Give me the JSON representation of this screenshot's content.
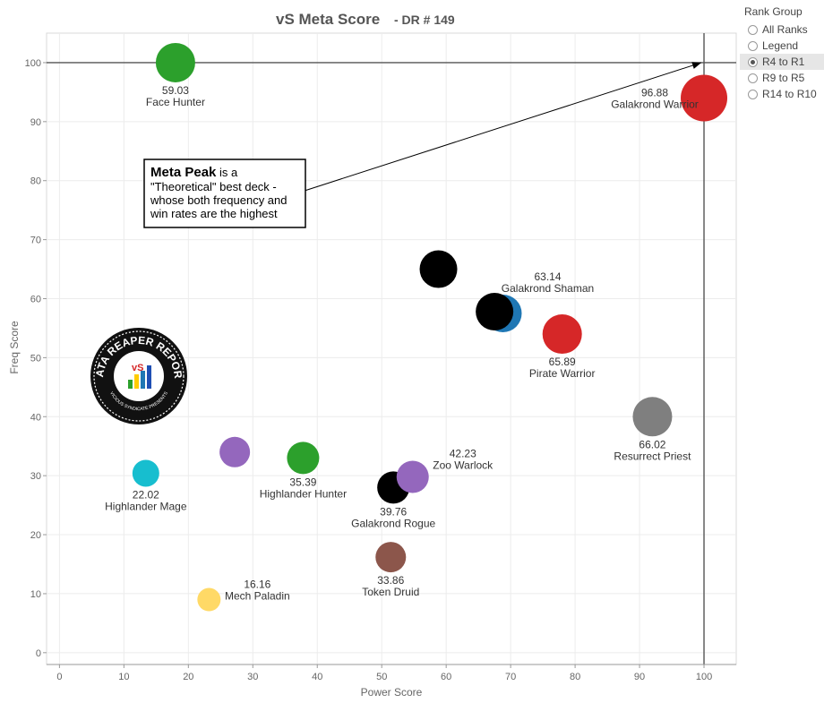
{
  "chart_data": {
    "type": "scatter",
    "title": "vS Meta Score",
    "subtitle": "- DR # 149",
    "xlabel": "Power Score",
    "ylabel": "Freq Score",
    "xlim": [
      -2,
      105
    ],
    "ylim": [
      -2,
      105
    ],
    "xticks": [
      0,
      10,
      20,
      30,
      40,
      50,
      60,
      70,
      80,
      90,
      100
    ],
    "yticks": [
      0,
      10,
      20,
      30,
      40,
      50,
      60,
      70,
      80,
      90,
      100
    ],
    "grid": true,
    "points": [
      {
        "name": "Face Hunter",
        "score": "59.03",
        "x": 18,
        "y": 100,
        "color": "#2ca02c",
        "size": 22
      },
      {
        "name": "Galakrond Warrior",
        "score": "96.88",
        "x": 100,
        "y": 94,
        "color": "#d62728",
        "size": 26
      },
      {
        "name": "",
        "score": "",
        "x": 58.8,
        "y": 65,
        "color": "#000000",
        "size": 21
      },
      {
        "name": "Galakrond Shaman",
        "score": "63.14",
        "x": 68.8,
        "y": 57.5,
        "color": "#1f77b4",
        "size": 21
      },
      {
        "name": "",
        "score": "",
        "x": 67.5,
        "y": 57.8,
        "color": "#000000",
        "size": 21
      },
      {
        "name": "Pirate Warrior",
        "score": "65.89",
        "x": 78,
        "y": 54,
        "color": "#d62728",
        "size": 22
      },
      {
        "name": "Resurrect Priest",
        "score": "66.02",
        "x": 92,
        "y": 40,
        "color": "#7f7f7f",
        "size": 22
      },
      {
        "name": "",
        "score": "",
        "x": 27.2,
        "y": 34,
        "color": "#9467bd",
        "size": 17
      },
      {
        "name": "Highlander Hunter",
        "score": "35.39",
        "x": 37.8,
        "y": 33,
        "color": "#2ca02c",
        "size": 18
      },
      {
        "name": "Highlander Mage",
        "score": "22.02",
        "x": 13.4,
        "y": 30.4,
        "color": "#17becf",
        "size": 15
      },
      {
        "name": "Galakrond Rogue",
        "score": "39.76",
        "x": 51.8,
        "y": 28,
        "color": "#000000",
        "size": 18
      },
      {
        "name": "Zoo Warlock",
        "score": "42.23",
        "x": 54.8,
        "y": 29.8,
        "color": "#9467bd",
        "size": 18
      },
      {
        "name": "Token Druid",
        "score": "33.86",
        "x": 51.4,
        "y": 16.2,
        "color": "#8c564b",
        "size": 17
      },
      {
        "name": "Mech Paladin",
        "score": "16.16",
        "x": 23.2,
        "y": 9,
        "color": "#ffd966",
        "size": 13
      }
    ],
    "reference_lines": {
      "x": 100,
      "y": 100
    },
    "annotation": {
      "title": "Meta Peak",
      "lines": [
        " is a",
        "\"Theoretical\" best deck -",
        "whose both frequency and",
        "win rates are the highest"
      ]
    },
    "legend": {
      "title": "Rank Group",
      "options": [
        "All Ranks",
        "Legend",
        "R4 to R1",
        "R9 to R5",
        "R14 to R10"
      ],
      "selected": "R4 to R1"
    }
  },
  "logo": {
    "text": "DATA REAPER REPORT",
    "subtext": "VICIOUS SYNDICATE PRESENTS",
    "icon": "bar-chart-logo"
  }
}
